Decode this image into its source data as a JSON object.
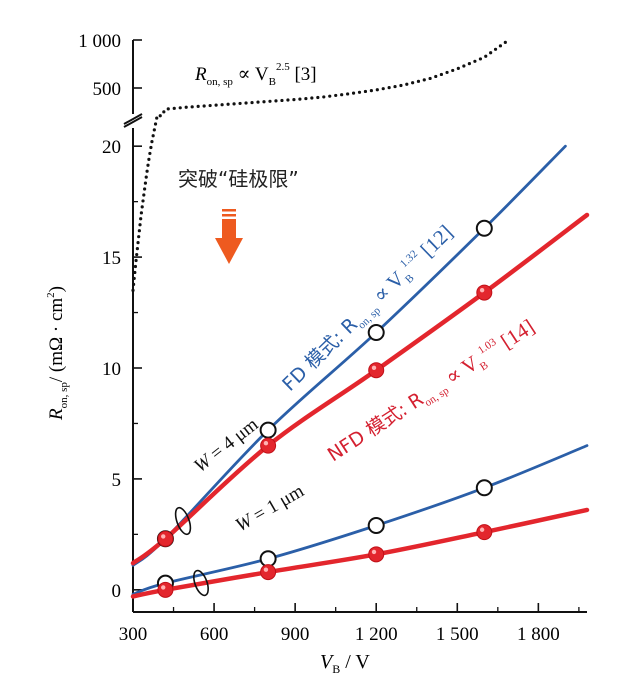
{
  "chart_data": {
    "type": "line",
    "xlabel": {
      "main": "V",
      "sub": "B",
      "unit": " / V"
    },
    "ylabel": {
      "main": "R",
      "sub": "on, sp",
      "unit": "/ (mΩ · cm",
      "sup": "2",
      "close": ")"
    },
    "xlim": [
      300,
      1980
    ],
    "xticks": [
      {
        "v": 300,
        "label": "300"
      },
      {
        "v": 600,
        "label": "600"
      },
      {
        "v": 900,
        "label": "900"
      },
      {
        "v": 1200,
        "label": "1 200"
      },
      {
        "v": 1500,
        "label": "1 500"
      },
      {
        "v": 1800,
        "label": "1 800"
      }
    ],
    "ylim_lower": [
      -1,
      21
    ],
    "yticks_lower": [
      {
        "v": 0,
        "label": "0"
      },
      {
        "v": 5,
        "label": "5"
      },
      {
        "v": 10,
        "label": "10"
      },
      {
        "v": 15,
        "label": "15"
      },
      {
        "v": 20,
        "label": "20"
      }
    ],
    "ylim_upper": [
      250,
      1000
    ],
    "yticks_upper": [
      {
        "v": 500,
        "label": "500"
      },
      {
        "v": 1000,
        "label": "1 000"
      }
    ],
    "colors": {
      "blue": "#2b5fa8",
      "red": "#e3262d",
      "black": "#111111",
      "arrow": "#ee5a1f"
    },
    "silicon_limit": {
      "label_main": "R",
      "label_sub": "on, sp",
      "label_mid": " ∝ V",
      "label_sub2": "B",
      "label_sup": "2.5",
      "label_ref": " [3]",
      "lower_points": [
        [
          300,
          13.5
        ],
        [
          310,
          14.7
        ],
        [
          320,
          15.8
        ],
        [
          330,
          16.9
        ],
        [
          340,
          17.8
        ],
        [
          350,
          18.7
        ],
        [
          360,
          19.5
        ],
        [
          370,
          20.2
        ],
        [
          380,
          20.8
        ],
        [
          390,
          21.4
        ]
      ],
      "upper_points": [
        [
          420,
          280
        ],
        [
          500,
          300
        ],
        [
          600,
          320
        ],
        [
          700,
          340
        ],
        [
          800,
          360
        ],
        [
          900,
          380
        ],
        [
          1000,
          405
        ],
        [
          1100,
          440
        ],
        [
          1200,
          480
        ],
        [
          1300,
          530
        ],
        [
          1400,
          600
        ],
        [
          1500,
          700
        ],
        [
          1600,
          820
        ],
        [
          1690,
          1000
        ]
      ]
    },
    "breakthrough_label": "突破“硅极限”",
    "series": [
      {
        "name": "FD",
        "color": "blue",
        "marker": "open",
        "line": [
          [
            300,
            1.1
          ],
          [
            420,
            2.3
          ],
          [
            800,
            7.2
          ],
          [
            1200,
            11.6
          ],
          [
            1600,
            16.3
          ],
          [
            1900,
            20.0
          ]
        ],
        "markers": [
          [
            420,
            2.3
          ],
          [
            800,
            7.2
          ],
          [
            1200,
            11.6
          ],
          [
            1600,
            16.3
          ]
        ]
      },
      {
        "name": "NFD",
        "color": "red",
        "marker": "filled",
        "line": [
          [
            300,
            1.2
          ],
          [
            420,
            2.3
          ],
          [
            800,
            6.5
          ],
          [
            1200,
            9.9
          ],
          [
            1600,
            13.4
          ],
          [
            1980,
            16.9
          ]
        ],
        "markers": [
          [
            420,
            2.3
          ],
          [
            800,
            6.5
          ],
          [
            1200,
            9.9
          ],
          [
            1600,
            13.4
          ]
        ]
      },
      {
        "name": "FD W1",
        "color": "blue",
        "marker": "open",
        "line": [
          [
            300,
            -0.2
          ],
          [
            420,
            0.3
          ],
          [
            800,
            1.4
          ],
          [
            1200,
            2.9
          ],
          [
            1600,
            4.6
          ],
          [
            1980,
            6.5
          ]
        ],
        "markers": [
          [
            420,
            0.3
          ],
          [
            800,
            1.4
          ],
          [
            1200,
            2.9
          ],
          [
            1600,
            4.6
          ]
        ]
      },
      {
        "name": "NFD W1",
        "color": "red",
        "marker": "filled",
        "line": [
          [
            300,
            -0.3
          ],
          [
            420,
            0.0
          ],
          [
            800,
            0.8
          ],
          [
            1200,
            1.6
          ],
          [
            1600,
            2.6
          ],
          [
            1980,
            3.6
          ]
        ],
        "markers": [
          [
            420,
            0.0
          ],
          [
            800,
            0.8
          ],
          [
            1200,
            1.6
          ],
          [
            1600,
            2.6
          ]
        ]
      }
    ],
    "annotations": {
      "fd": {
        "pre": "FD 模式: R",
        "sub": "on, sp",
        "mid": " ∝ V",
        "sub2": "B",
        "sup": "1.32",
        "post": " [12]"
      },
      "nfd": {
        "pre": "NFD 模式: R",
        "sub": "on, sp",
        "mid": " ∝ V",
        "sub2": "B",
        "sup": "1.03",
        "post": " [14]"
      },
      "w4": {
        "pre": "W",
        "post": " = 4 μm"
      },
      "w1": {
        "pre": "W",
        "post": " = 1 μm"
      }
    }
  }
}
